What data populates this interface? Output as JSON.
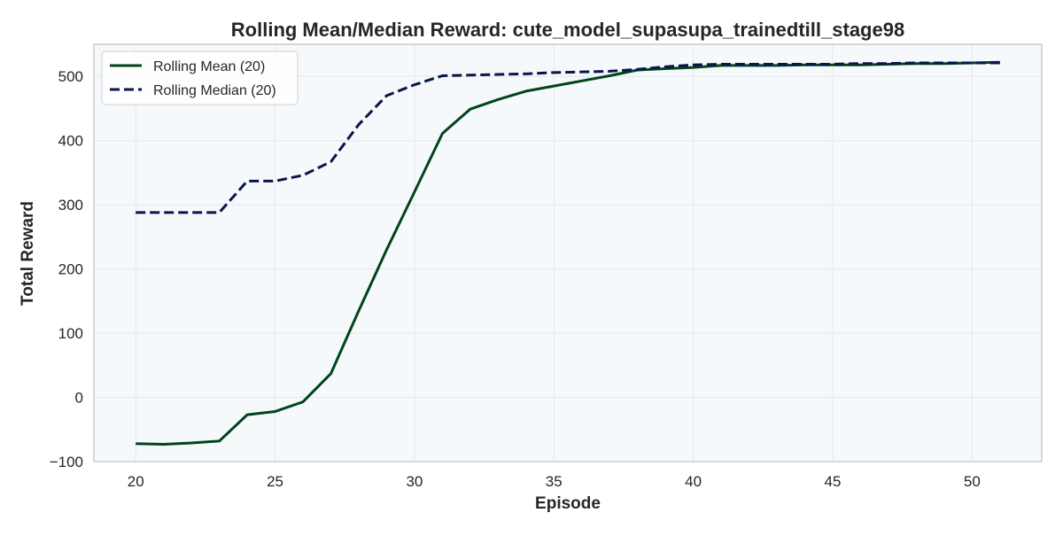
{
  "chart_data": {
    "type": "line",
    "title": "Rolling Mean/Median Reward: cute_model_supasupa_trainedtill_stage98",
    "xlabel": "Episode",
    "ylabel": "Total Reward",
    "xlim": [
      18.5,
      52.5
    ],
    "ylim": [
      -100,
      550
    ],
    "xticks": [
      20,
      25,
      30,
      35,
      40,
      45,
      50
    ],
    "yticks": [
      -100,
      0,
      100,
      200,
      300,
      400,
      500
    ],
    "xtick_labels": [
      "20",
      "25",
      "30",
      "35",
      "40",
      "45",
      "50"
    ],
    "ytick_labels": [
      "−100",
      "0",
      "100",
      "200",
      "300",
      "400",
      "500"
    ],
    "grid": true,
    "legend_position": "top-left",
    "x": [
      20,
      21,
      22,
      23,
      24,
      25,
      26,
      27,
      28,
      29,
      30,
      31,
      32,
      33,
      34,
      35,
      36,
      37,
      38,
      39,
      40,
      41,
      42,
      43,
      44,
      45,
      46,
      47,
      48,
      49,
      50,
      51
    ],
    "series": [
      {
        "name": "Rolling Mean (20)",
        "color": "#00441b",
        "style": "solid",
        "values": [
          -72,
          -73,
          -71,
          -68,
          -27,
          -22,
          -7,
          37,
          135,
          230,
          320,
          411,
          449,
          464,
          477,
          485,
          493,
          501,
          510,
          512,
          514,
          517,
          517,
          517,
          518,
          518,
          518,
          519,
          520,
          520,
          521,
          522
        ]
      },
      {
        "name": "Rolling Median (20)",
        "color": "#08154a",
        "style": "dashed",
        "values": [
          288,
          288,
          288,
          288,
          337,
          337,
          346,
          367,
          425,
          470,
          487,
          501,
          502,
          503,
          504,
          506,
          507,
          508,
          511,
          515,
          518,
          519,
          519,
          519,
          519,
          519,
          520,
          520,
          521,
          521,
          521,
          521
        ]
      }
    ]
  },
  "colors": {
    "plot_background": "#f5f9fc",
    "axes_border": "#cccccc",
    "grid": "#e3e8ec",
    "text": "#262626"
  }
}
